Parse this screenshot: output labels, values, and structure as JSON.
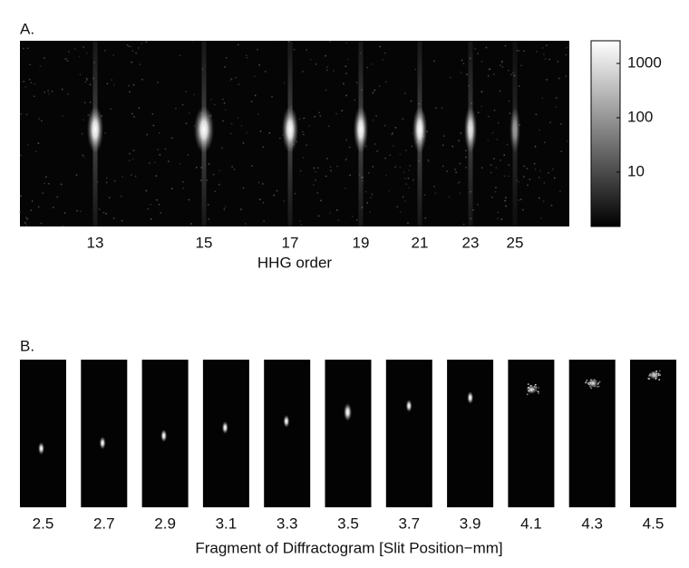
{
  "panel_a": {
    "label": "A.",
    "x_label": "HHG order",
    "x_ticks": [
      "13",
      "15",
      "17",
      "19",
      "21",
      "23",
      "25"
    ],
    "colorbar_ticks": [
      "1000",
      "100",
      "10"
    ]
  },
  "panel_b": {
    "label": "B.",
    "x_label": "Fragment of Diffractogram [Slit Position−mm]",
    "fragments": [
      "2.5",
      "2.7",
      "2.9",
      "3.1",
      "3.3",
      "3.5",
      "3.7",
      "3.9",
      "4.1",
      "4.3",
      "4.5"
    ]
  }
}
